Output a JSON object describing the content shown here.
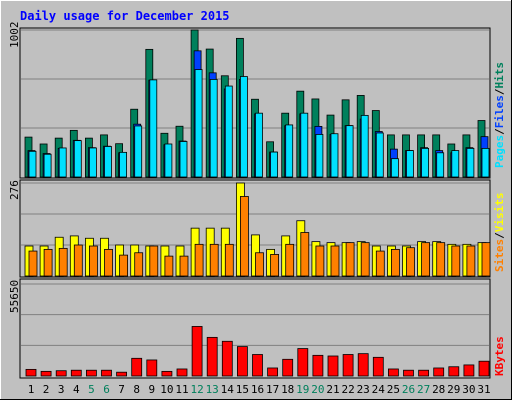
{
  "title": "Daily usage for December 2015",
  "colors": {
    "background": "#c0c0c0",
    "title": "#0000ff",
    "hits": "#00805c",
    "files": "#0040ff",
    "pages": "#00e0ff",
    "visits": "#ffff00",
    "sites": "#ff8000",
    "kbytes": "#ff0000",
    "weekend_label": "#00805c",
    "label": "#000000"
  },
  "chart_data": [
    {
      "type": "bar",
      "name": "hits-files-pages",
      "max_label": "1002",
      "ylim": [
        0,
        1002
      ],
      "legend": [
        "Pages",
        "Files",
        "Hits"
      ],
      "series": [
        {
          "name": "Hits",
          "values": [
            272,
            225,
            265,
            318,
            265,
            287,
            227,
            462,
            870,
            298,
            346,
            1002,
            872,
            690,
            945,
            530,
            240,
            435,
            585,
            532,
            422,
            526,
            556,
            453,
            287,
            287,
            287,
            287,
            225,
            287,
            385
          ]
        },
        {
          "name": "Files",
          "values": [
            180,
            160,
            195,
            250,
            200,
            210,
            165,
            360,
            660,
            220,
            245,
            860,
            710,
            600,
            665,
            430,
            170,
            350,
            430,
            345,
            290,
            350,
            395,
            310,
            190,
            180,
            200,
            180,
            165,
            200,
            275
          ]
        },
        {
          "name": "Pages",
          "values": [
            175,
            155,
            198,
            248,
            198,
            208,
            168,
            348,
            662,
            225,
            242,
            732,
            665,
            620,
            685,
            435,
            170,
            355,
            435,
            290,
            295,
            350,
            420,
            300,
            125,
            180,
            195,
            165,
            180,
            195,
            195
          ]
        }
      ]
    },
    {
      "type": "bar",
      "name": "visits-sites",
      "max_label": "276",
      "ylim": [
        0,
        276
      ],
      "legend": [
        "Sites",
        "Visits"
      ],
      "series": [
        {
          "name": "Visits",
          "values": [
            89,
            89,
            115,
            119,
            112,
            112,
            92,
            92,
            89,
            89,
            89,
            142,
            142,
            142,
            276,
            122,
            79,
            119,
            164,
            102,
            99,
            99,
            102,
            89,
            89,
            89,
            102,
            102,
            94,
            94,
            99
          ]
        },
        {
          "name": "Sites",
          "values": [
            74,
            79,
            82,
            92,
            89,
            79,
            62,
            69,
            89,
            59,
            59,
            94,
            94,
            94,
            236,
            69,
            64,
            94,
            129,
            89,
            89,
            99,
            99,
            74,
            79,
            84,
            99,
            99,
            89,
            89,
            99
          ]
        }
      ]
    },
    {
      "type": "bar",
      "name": "kbytes",
      "max_label": "55650",
      "ylim": [
        0,
        55650
      ],
      "legend": [
        "KBytes"
      ],
      "series": [
        {
          "name": "KBytes",
          "values": [
            4000,
            2810,
            3200,
            3500,
            3500,
            3500,
            2300,
            10700,
            9700,
            2800,
            4250,
            29970,
            23370,
            21000,
            17800,
            13000,
            4850,
            10100,
            16600,
            12500,
            12100,
            13000,
            13520,
            11300,
            4250,
            3500,
            3500,
            4850,
            5600,
            6700,
            8950
          ]
        }
      ]
    }
  ],
  "days": [
    {
      "label": "1",
      "weekend": false
    },
    {
      "label": "2",
      "weekend": false
    },
    {
      "label": "3",
      "weekend": false
    },
    {
      "label": "4",
      "weekend": false
    },
    {
      "label": "5",
      "weekend": true
    },
    {
      "label": "6",
      "weekend": true
    },
    {
      "label": "7",
      "weekend": false
    },
    {
      "label": "8",
      "weekend": false
    },
    {
      "label": "9",
      "weekend": false
    },
    {
      "label": "10",
      "weekend": false
    },
    {
      "label": "11",
      "weekend": false
    },
    {
      "label": "12",
      "weekend": true
    },
    {
      "label": "13",
      "weekend": true
    },
    {
      "label": "14",
      "weekend": false
    },
    {
      "label": "15",
      "weekend": false
    },
    {
      "label": "16",
      "weekend": false
    },
    {
      "label": "17",
      "weekend": false
    },
    {
      "label": "18",
      "weekend": false
    },
    {
      "label": "19",
      "weekend": true
    },
    {
      "label": "20",
      "weekend": true
    },
    {
      "label": "21",
      "weekend": false
    },
    {
      "label": "22",
      "weekend": false
    },
    {
      "label": "23",
      "weekend": false
    },
    {
      "label": "24",
      "weekend": false
    },
    {
      "label": "25",
      "weekend": false
    },
    {
      "label": "26",
      "weekend": true
    },
    {
      "label": "27",
      "weekend": true
    },
    {
      "label": "28",
      "weekend": false
    },
    {
      "label": "29",
      "weekend": false
    },
    {
      "label": "30",
      "weekend": false
    },
    {
      "label": "31",
      "weekend": false
    }
  ]
}
